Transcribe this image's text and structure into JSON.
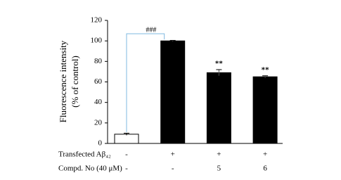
{
  "chart_data": {
    "type": "bar",
    "y_label_lines": [
      "Fluorescence intensity",
      "(% of control)"
    ],
    "categories": [
      null,
      null,
      null,
      null
    ],
    "values": [
      9,
      100,
      69,
      65
    ],
    "errors": [
      1,
      0.5,
      3,
      1
    ],
    "colors": [
      "#ffffff",
      "#000000",
      "#000000",
      "#000000"
    ],
    "value_annotations": [
      null,
      "###",
      "**",
      "**"
    ],
    "annotation_colors": [
      null,
      "#3a6fd8",
      "#000000",
      "#000000"
    ],
    "ylim": [
      0,
      120
    ],
    "yticks": [
      0,
      20,
      40,
      60,
      80,
      100,
      120
    ],
    "x_table": [
      {
        "label": "Transfected Aβ₄₂",
        "cells": [
          "-",
          "+",
          "+",
          "+"
        ]
      },
      {
        "label": "Compd. No (40 μM)",
        "cells": [
          "-",
          "-",
          "5",
          "6"
        ]
      }
    ]
  }
}
